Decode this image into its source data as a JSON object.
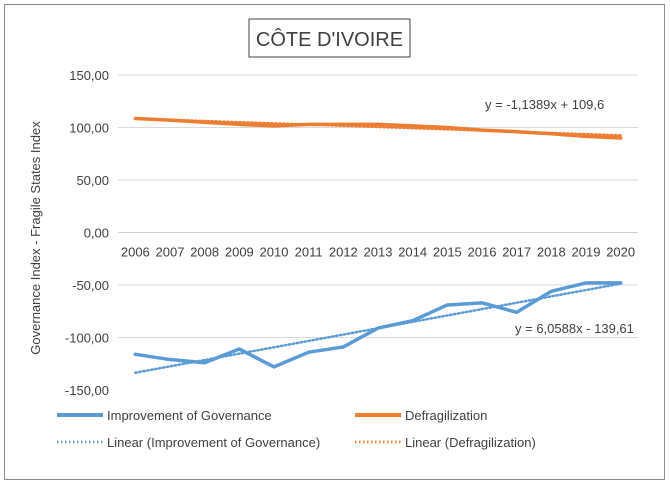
{
  "chart_data": {
    "type": "line",
    "title": "CÔTE D'IVOIRE",
    "ylabel": "Governance Index -  Fragile States Index",
    "xlabel": "",
    "ylim": [
      -150,
      150
    ],
    "y_ticks": [
      -150,
      -100,
      -50,
      0,
      50,
      100,
      150
    ],
    "y_tick_labels": [
      "-150,00",
      "-100,00",
      "-50,00",
      "0,00",
      "50,00",
      "100,00",
      "150,00"
    ],
    "grid": true,
    "categories": [
      "2006",
      "2007",
      "2008",
      "2009",
      "2010",
      "2011",
      "2012",
      "2013",
      "2014",
      "2015",
      "2016",
      "2017",
      "2018",
      "2019",
      "2020"
    ],
    "series": [
      {
        "name": "Improvement of Governance",
        "color": "#5b9bd5",
        "style": "solid",
        "values": [
          -116,
          -121,
          -124,
          -111,
          -128,
          -114,
          -109,
          -91,
          -84,
          -69,
          -67,
          -76,
          -56,
          -48,
          -48
        ]
      },
      {
        "name": "Defragilization",
        "color": "#ed7d31",
        "style": "solid",
        "values": [
          108.6,
          107,
          105,
          103,
          101.5,
          103,
          103,
          103,
          101.5,
          100,
          97.5,
          96,
          94,
          91.5,
          90
        ]
      }
    ],
    "trendlines": [
      {
        "name": "Linear (Improvement of Governance)",
        "color": "#5b9bd5",
        "style": "dotted",
        "slope": 6.0588,
        "intercept": -139.61,
        "equation": "y = 6,0588x - 139,61"
      },
      {
        "name": "Linear (Defragilization)",
        "color": "#ed7d31",
        "style": "dotted",
        "slope": -1.1389,
        "intercept": 109.6,
        "equation": "y = -1,1389x + 109,6"
      }
    ],
    "legend_position": "bottom"
  }
}
